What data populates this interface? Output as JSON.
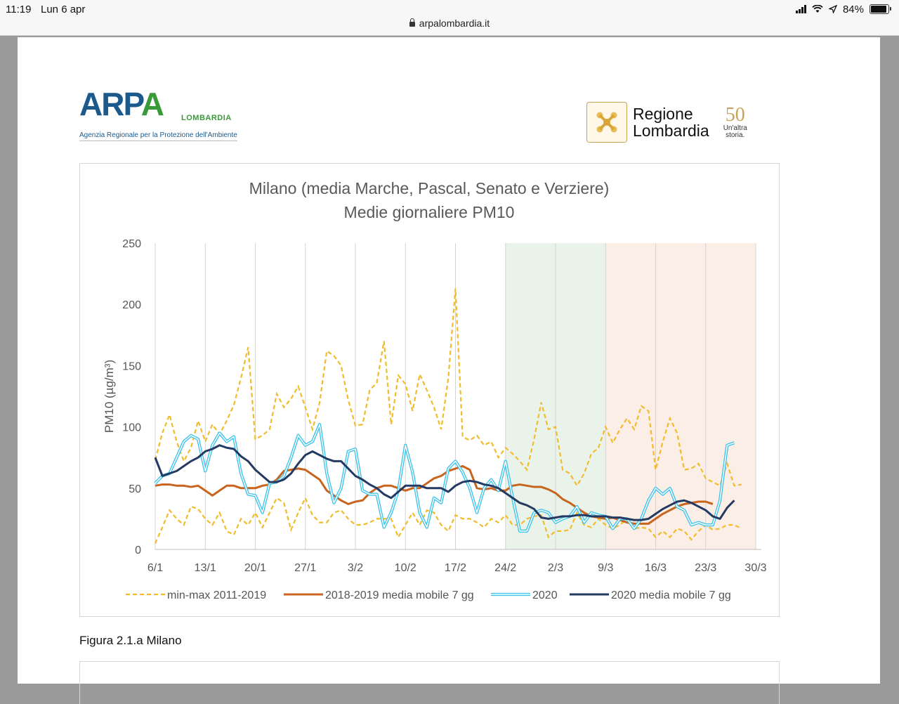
{
  "status_bar": {
    "time": "11:19",
    "date": "Lun 6 apr",
    "url": "arpalombardia.it",
    "battery": "84%"
  },
  "header": {
    "arpa_logo_left": "ARP",
    "arpa_logo_right": "A",
    "arpa_region": "LOMBARDIA",
    "arpa_full": "Agenzia Regionale per la Protezione dell'Ambiente",
    "regione_line1": "Regione",
    "regione_line2": "Lombardia",
    "anniv_num": "50",
    "anniv_line1": "Un'altra",
    "anniv_line2": "storia."
  },
  "caption": "Figura 2.1.a Milano",
  "chart_data": {
    "type": "line",
    "title": "Milano (media Marche, Pascal, Senato e Verziere)",
    "subtitle": "Medie giornaliere PM10",
    "ylabel": "PM10 (µg/m³)",
    "ylim": [
      0,
      250
    ],
    "yticks": [
      0,
      50,
      100,
      150,
      200,
      250
    ],
    "xlim": [
      0,
      84
    ],
    "xticks": [
      {
        "x": 0,
        "label": "6/1"
      },
      {
        "x": 7,
        "label": "13/1"
      },
      {
        "x": 14,
        "label": "20/1"
      },
      {
        "x": 21,
        "label": "27/1"
      },
      {
        "x": 28,
        "label": "3/2"
      },
      {
        "x": 35,
        "label": "10/2"
      },
      {
        "x": 42,
        "label": "17/2"
      },
      {
        "x": 49,
        "label": "24/2"
      },
      {
        "x": 56,
        "label": "2/3"
      },
      {
        "x": 63,
        "label": "9/3"
      },
      {
        "x": 70,
        "label": "16/3"
      },
      {
        "x": 77,
        "label": "23/3"
      },
      {
        "x": 84,
        "label": "30/3"
      }
    ],
    "shaded_regions": [
      {
        "from": 49,
        "to": 63,
        "color": "#eaf3ea"
      },
      {
        "from": 63,
        "to": 84,
        "color": "#fbeee6"
      }
    ],
    "legend": "bottom",
    "series": [
      {
        "name": "min-max 2011-2019",
        "style": "dashed",
        "color": "#f2bb2b",
        "role": "max",
        "values": [
          73,
          95,
          110,
          88,
          72,
          83,
          105,
          88,
          102,
          94,
          105,
          118,
          140,
          165,
          90,
          93,
          98,
          127,
          116,
          123,
          133,
          116,
          98,
          120,
          162,
          158,
          150,
          122,
          101,
          102,
          130,
          136,
          170,
          102,
          142,
          135,
          113,
          143,
          130,
          116,
          98,
          140,
          213,
          92,
          89,
          93,
          85,
          88,
          75,
          83,
          78,
          72,
          65,
          90,
          120,
          98,
          100,
          65,
          62,
          52,
          62,
          78,
          83,
          100,
          87,
          98,
          107,
          98,
          117,
          113,
          65,
          88,
          107,
          95,
          65,
          66,
          70,
          58,
          55,
          52,
          70,
          52,
          53
        ]
      },
      {
        "name": "min-max 2011-2019",
        "style": "dashed",
        "color": "#f2bb2b",
        "role": "min",
        "values": [
          5,
          18,
          32,
          25,
          20,
          35,
          33,
          25,
          20,
          30,
          15,
          12,
          25,
          20,
          30,
          18,
          30,
          42,
          38,
          16,
          30,
          42,
          28,
          22,
          22,
          30,
          32,
          25,
          20,
          20,
          22,
          25,
          25,
          25,
          10,
          20,
          30,
          20,
          32,
          30,
          20,
          15,
          28,
          25,
          25,
          22,
          18,
          25,
          22,
          28,
          20,
          20,
          25,
          27,
          28,
          10,
          15,
          15,
          16,
          30,
          20,
          18,
          25,
          20,
          17,
          20,
          25,
          17,
          18,
          17,
          10,
          15,
          10,
          17,
          15,
          8,
          15,
          20,
          16,
          17,
          20,
          20,
          17
        ]
      },
      {
        "name": "2018-2019 media mobile 7 gg",
        "style": "solid",
        "color": "#c8641e",
        "values": [
          52,
          53,
          53,
          52,
          52,
          51,
          52,
          48,
          44,
          48,
          52,
          52,
          50,
          50,
          50,
          52,
          53,
          57,
          64,
          65,
          66,
          65,
          61,
          57,
          48,
          44,
          40,
          37,
          39,
          40,
          46,
          50,
          52,
          52,
          50,
          48,
          50,
          50,
          54,
          58,
          60,
          64,
          66,
          68,
          65,
          50,
          49,
          50,
          48,
          48,
          52,
          53,
          52,
          51,
          51,
          49,
          46,
          41,
          38,
          34,
          30,
          27,
          26,
          25,
          26,
          24,
          22,
          21,
          21,
          21,
          25,
          29,
          32,
          35,
          37,
          38,
          39,
          39,
          37
        ]
      },
      {
        "name": "2020",
        "style": "double",
        "color": "#3cc3ea",
        "values": [
          54,
          60,
          62,
          75,
          88,
          93,
          90,
          64,
          85,
          95,
          88,
          92,
          62,
          45,
          44,
          30,
          54,
          55,
          60,
          75,
          93,
          85,
          88,
          102,
          62,
          38,
          50,
          80,
          82,
          48,
          45,
          45,
          18,
          30,
          48,
          85,
          63,
          30,
          18,
          42,
          38,
          66,
          72,
          63,
          50,
          30,
          50,
          57,
          48,
          72,
          42,
          15,
          15,
          30,
          32,
          30,
          22,
          25,
          27,
          35,
          22,
          30,
          28,
          27,
          17,
          25,
          25,
          17,
          25,
          40,
          50,
          45,
          50,
          35,
          32,
          20,
          22,
          20,
          20,
          40,
          85,
          87
        ]
      },
      {
        "name": "2020 media mobile 7 gg",
        "style": "solid",
        "color": "#243a63",
        "values": [
          75,
          60,
          62,
          64,
          68,
          72,
          75,
          80,
          82,
          85,
          83,
          82,
          76,
          72,
          65,
          60,
          55,
          55,
          57,
          62,
          70,
          77,
          80,
          77,
          74,
          72,
          72,
          66,
          60,
          57,
          53,
          50,
          45,
          42,
          47,
          52,
          52,
          52,
          50,
          50,
          50,
          47,
          52,
          55,
          56,
          55,
          53,
          52,
          50,
          46,
          42,
          38,
          36,
          33,
          26,
          25,
          26,
          27,
          27,
          28,
          28,
          27,
          27,
          27,
          26,
          26,
          25,
          24,
          24,
          25,
          29,
          33,
          36,
          39,
          40,
          38,
          35,
          32,
          27,
          25,
          34,
          40
        ]
      }
    ]
  }
}
